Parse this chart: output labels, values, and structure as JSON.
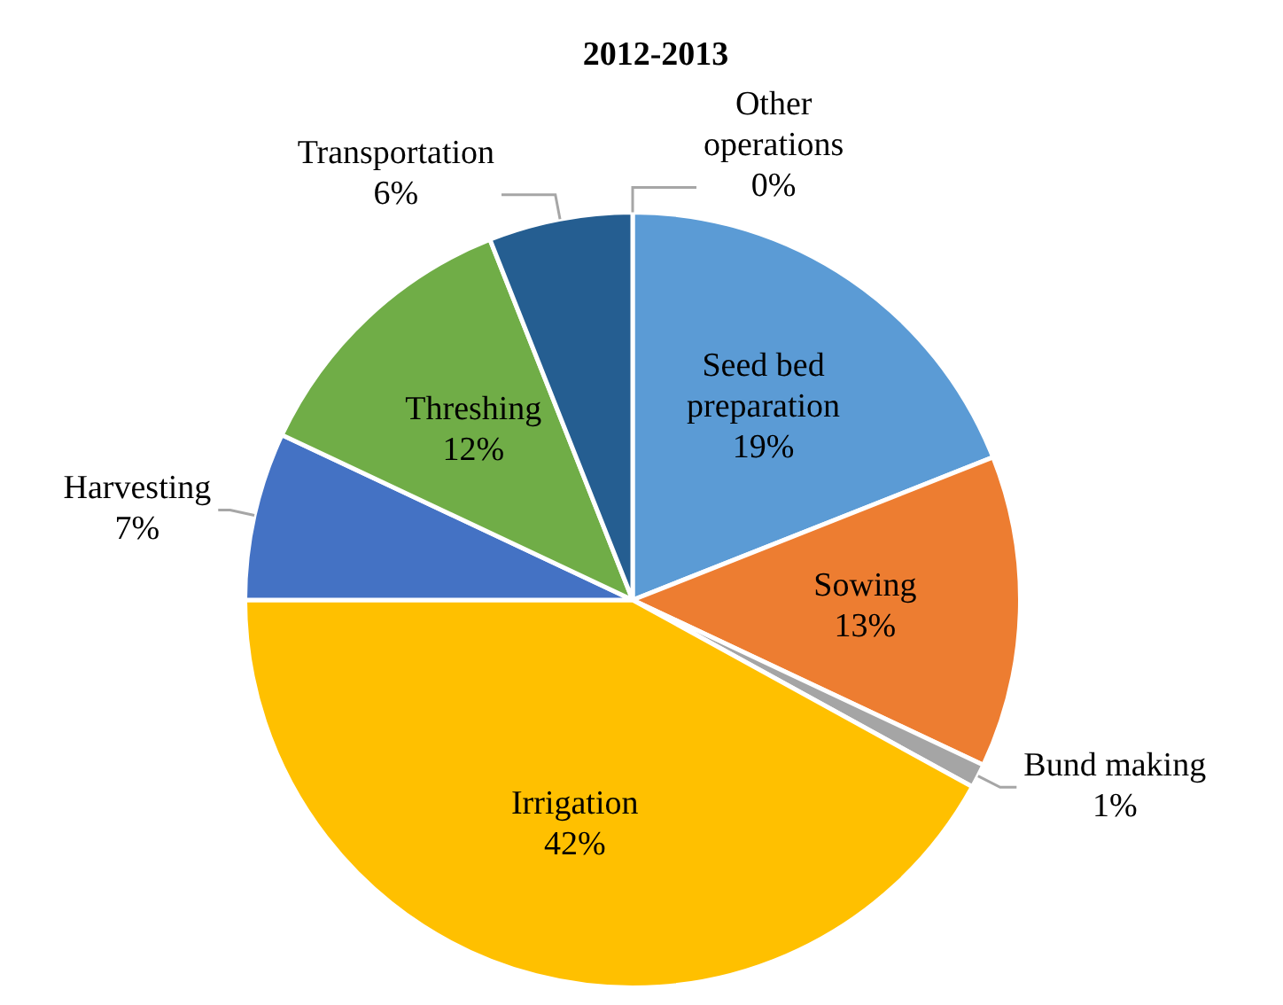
{
  "chart_data": {
    "type": "pie",
    "title": "2012-2013",
    "categories": [
      "Seed bed preparation",
      "Sowing",
      "Bund making",
      "Irrigation",
      "Harvesting",
      "Threshing",
      "Transportation",
      "Other operations"
    ],
    "values": [
      19,
      13,
      1,
      42,
      7,
      12,
      6,
      0
    ],
    "value_labels": [
      "19%",
      "13%",
      "1%",
      "42%",
      "7%",
      "12%",
      "6%",
      "0%"
    ],
    "colors": [
      "#5b9bd5",
      "#ed7d31",
      "#a5a5a5",
      "#ffc000",
      "#4472c4",
      "#70ad47",
      "#255e91",
      "#9e480e"
    ],
    "legend": false
  }
}
